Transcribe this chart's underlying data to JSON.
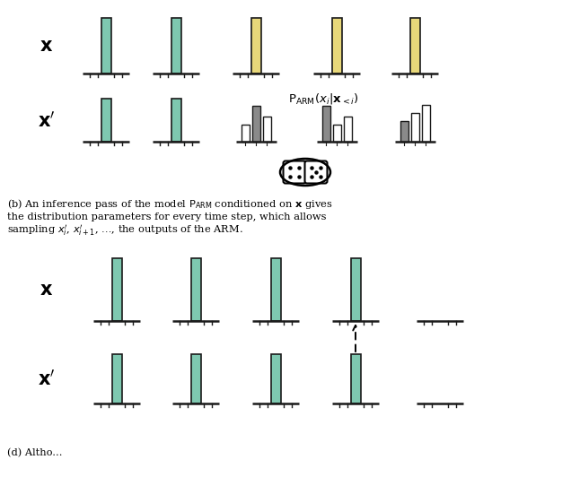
{
  "bg_color": "#ffffff",
  "green_color": "#7ec8b0",
  "yellow_color": "#e8d87a",
  "gray_color": "#8a8a8a",
  "white_bar_color": "#ffffff",
  "bar_edge_color": "#1a1a1a",
  "text_color": "#000000",
  "green_color2": "#7ec8b0",
  "caption_b": "(b) An inference pass of the model $\\mathrm{P}_{\\mathrm{ARM}}$ conditioned on $\\mathbf{x}$ gives\nthe distribution parameters for every time step, which allows\nsampling $x_i^{\\prime}$, $x_{i+1}^{\\prime}$, $\\ldots$, the outputs of the ARM.",
  "caption_d_partial": "(d) Altho...",
  "arm_label": "$\\mathrm{P}_{\\mathrm{ARM}}(x_i|\\mathbf{x}_{<i})$"
}
